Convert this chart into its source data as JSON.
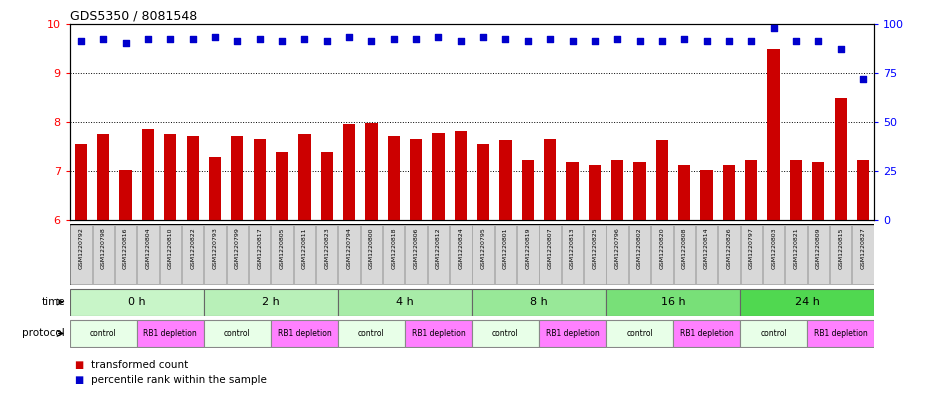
{
  "title": "GDS5350 / 8081548",
  "samples": [
    "GSM1220792",
    "GSM1220798",
    "GSM1220816",
    "GSM1220804",
    "GSM1220810",
    "GSM1220822",
    "GSM1220793",
    "GSM1220799",
    "GSM1220817",
    "GSM1220805",
    "GSM1220811",
    "GSM1220823",
    "GSM1220794",
    "GSM1220800",
    "GSM1220818",
    "GSM1220806",
    "GSM1220812",
    "GSM1220824",
    "GSM1220795",
    "GSM1220801",
    "GSM1220819",
    "GSM1220807",
    "GSM1220813",
    "GSM1220825",
    "GSM1220796",
    "GSM1220802",
    "GSM1220820",
    "GSM1220808",
    "GSM1220814",
    "GSM1220826",
    "GSM1220797",
    "GSM1220803",
    "GSM1220821",
    "GSM1220809",
    "GSM1220815",
    "GSM1220827"
  ],
  "red_values": [
    7.55,
    7.75,
    7.02,
    7.85,
    7.75,
    7.72,
    7.28,
    7.72,
    7.65,
    7.38,
    7.75,
    7.38,
    7.95,
    7.98,
    7.72,
    7.65,
    7.78,
    7.82,
    7.55,
    7.62,
    7.22,
    7.65,
    7.18,
    7.12,
    7.22,
    7.18,
    7.62,
    7.12,
    7.02,
    7.12,
    7.22,
    9.48,
    7.22,
    7.18,
    8.48,
    7.22
  ],
  "blue_values": [
    91,
    92,
    90,
    92,
    92,
    92,
    93,
    91,
    92,
    91,
    92,
    91,
    93,
    91,
    92,
    92,
    93,
    91,
    93,
    92,
    91,
    92,
    91,
    91,
    92,
    91,
    91,
    92,
    91,
    91,
    91,
    98,
    91,
    91,
    87,
    72
  ],
  "time_groups": [
    {
      "label": "0 h",
      "start": 0,
      "end": 6,
      "color": "#c8f5c8"
    },
    {
      "label": "2 h",
      "start": 6,
      "end": 12,
      "color": "#b8f0b8"
    },
    {
      "label": "4 h",
      "start": 12,
      "end": 18,
      "color": "#a8eca8"
    },
    {
      "label": "8 h",
      "start": 18,
      "end": 24,
      "color": "#98e898"
    },
    {
      "label": "16 h",
      "start": 24,
      "end": 30,
      "color": "#78e078"
    },
    {
      "label": "24 h",
      "start": 30,
      "end": 36,
      "color": "#50d850"
    }
  ],
  "protocol_groups": [
    {
      "label": "control",
      "start": 0,
      "end": 3,
      "color": "#e8ffe8"
    },
    {
      "label": "RB1 depletion",
      "start": 3,
      "end": 6,
      "color": "#ff80ff"
    },
    {
      "label": "control",
      "start": 6,
      "end": 9,
      "color": "#e8ffe8"
    },
    {
      "label": "RB1 depletion",
      "start": 9,
      "end": 12,
      "color": "#ff80ff"
    },
    {
      "label": "control",
      "start": 12,
      "end": 15,
      "color": "#e8ffe8"
    },
    {
      "label": "RB1 depletion",
      "start": 15,
      "end": 18,
      "color": "#ff80ff"
    },
    {
      "label": "control",
      "start": 18,
      "end": 21,
      "color": "#e8ffe8"
    },
    {
      "label": "RB1 depletion",
      "start": 21,
      "end": 24,
      "color": "#ff80ff"
    },
    {
      "label": "control",
      "start": 24,
      "end": 27,
      "color": "#e8ffe8"
    },
    {
      "label": "RB1 depletion",
      "start": 27,
      "end": 30,
      "color": "#ff80ff"
    },
    {
      "label": "control",
      "start": 30,
      "end": 33,
      "color": "#e8ffe8"
    },
    {
      "label": "RB1 depletion",
      "start": 33,
      "end": 36,
      "color": "#ff80ff"
    }
  ],
  "ylim_left": [
    6,
    10
  ],
  "ylim_right": [
    0,
    100
  ],
  "yticks_left": [
    6,
    7,
    8,
    9,
    10
  ],
  "yticks_right": [
    0,
    25,
    50,
    75,
    100
  ],
  "bar_color": "#cc0000",
  "dot_color": "#0000cc",
  "legend_red_label": "transformed count",
  "legend_blue_label": "percentile rank within the sample",
  "time_label": "time",
  "protocol_label": "protocol"
}
